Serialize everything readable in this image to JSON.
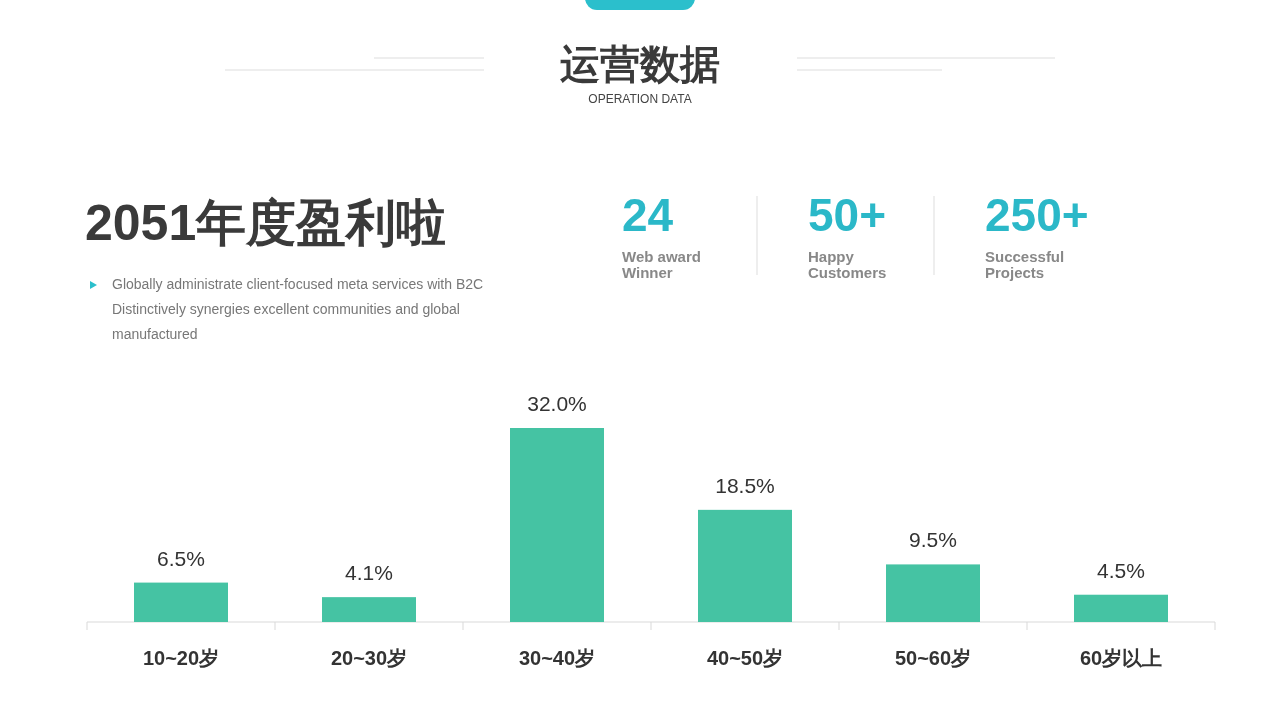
{
  "chart_data": [
    {
      "type": "other",
      "title": "运营数据",
      "subtitle": "OPERATION DATA",
      "annotations": [
        "2051年度盈利啦",
        "Globally administrate client-focused meta services with B2C Distinctively synergies excellent communities and global manufactured",
        "24",
        "Web award Winner",
        "50+",
        "Happy Customers",
        "250+",
        "Successful Projects"
      ]
    },
    {
      "type": "bar",
      "categories": [
        "10~20岁",
        "20~30岁",
        "30~40岁",
        "40~50岁",
        "50~60岁",
        "60岁以上"
      ],
      "values": [
        6.5,
        4.1,
        32.0,
        18.5,
        9.5,
        4.5
      ],
      "value_labels": [
        "6.5%",
        "4.1%",
        "32.0%",
        "18.5%",
        "9.5%",
        "4.5%"
      ],
      "color": "#45c3a3"
    }
  ]
}
